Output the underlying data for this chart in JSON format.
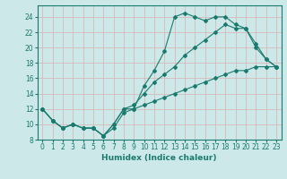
{
  "xlabel": "Humidex (Indice chaleur)",
  "ylabel": "",
  "bg_color": "#cce8e8",
  "line_color": "#1a7a6e",
  "grid_color": "#b8d8d0",
  "xlim": [
    -0.5,
    23.5
  ],
  "ylim": [
    8,
    25.5
  ],
  "yticks": [
    8,
    10,
    12,
    14,
    16,
    18,
    20,
    22,
    24
  ],
  "xticks": [
    0,
    1,
    2,
    3,
    4,
    5,
    6,
    7,
    8,
    9,
    10,
    11,
    12,
    13,
    14,
    15,
    16,
    17,
    18,
    19,
    20,
    21,
    22,
    23
  ],
  "series": [
    {
      "x": [
        0,
        1,
        2,
        3,
        4,
        5,
        6,
        7,
        8,
        9,
        10,
        11,
        12,
        13,
        14,
        15,
        16,
        17,
        18,
        19,
        20,
        21,
        22,
        23
      ],
      "y": [
        12,
        10.5,
        9.5,
        10,
        9.5,
        9.5,
        8.5,
        10,
        12,
        12,
        15,
        17,
        19.5,
        24,
        24.5,
        24,
        23.5,
        24,
        24,
        23,
        22.5,
        20,
        18.5,
        17.5
      ]
    },
    {
      "x": [
        0,
        1,
        2,
        3,
        4,
        5,
        6,
        7,
        8,
        9,
        10,
        11,
        12,
        13,
        14,
        15,
        16,
        17,
        18,
        19,
        20,
        21,
        22,
        23
      ],
      "y": [
        12,
        10.5,
        9.5,
        10,
        9.5,
        9.5,
        8.5,
        10,
        12,
        12.5,
        14,
        15.5,
        16.5,
        17.5,
        19,
        20,
        21,
        22,
        23,
        22.5,
        22.5,
        20.5,
        18.5,
        17.5
      ]
    },
    {
      "x": [
        0,
        1,
        2,
        3,
        4,
        5,
        6,
        7,
        8,
        9,
        10,
        11,
        12,
        13,
        14,
        15,
        16,
        17,
        18,
        19,
        20,
        21,
        22,
        23
      ],
      "y": [
        12,
        10.5,
        9.5,
        10,
        9.5,
        9.5,
        8.5,
        9.5,
        11.5,
        12,
        12.5,
        13,
        13.5,
        14,
        14.5,
        15,
        15.5,
        16,
        16.5,
        17,
        17,
        17.5,
        17.5,
        17.5
      ]
    }
  ]
}
